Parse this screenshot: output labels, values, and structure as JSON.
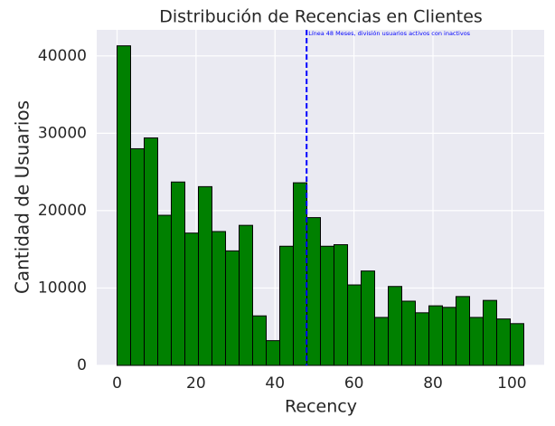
{
  "chart_data": {
    "type": "histogram",
    "title": "Distribución de Recencias en Clientes",
    "xlabel": "Recency",
    "ylabel": "Cantidad de Usuarios",
    "bins": [
      0,
      3.43,
      6.87,
      10.3,
      13.73,
      17.17,
      20.6,
      24.03,
      27.47,
      30.9,
      34.33,
      37.77,
      41.2,
      44.63,
      48.07,
      51.5,
      54.93,
      58.37,
      61.8,
      65.23,
      68.67,
      72.1,
      75.53,
      78.97,
      82.4,
      85.83,
      89.27,
      92.7,
      96.13,
      99.57,
      103
    ],
    "values": [
      41300,
      28000,
      29400,
      19400,
      23700,
      17100,
      23100,
      17300,
      14800,
      18100,
      6400,
      3200,
      15400,
      23600,
      19100,
      15400,
      15600,
      10400,
      12200,
      6200,
      10200,
      8300,
      6800,
      7700,
      7500,
      8900,
      6200,
      8400,
      6000,
      5400
    ],
    "color": "#008000",
    "edgecolor": "#000000",
    "xlim": [
      -5.15,
      108.15
    ],
    "ylim": [
      0,
      43365
    ],
    "xticks": [
      0,
      20,
      40,
      60,
      80,
      100
    ],
    "yticks": [
      0,
      10000,
      20000,
      30000,
      40000
    ],
    "grid": true,
    "vline": {
      "x": 48,
      "color": "#0000ff",
      "annotation": "Línea 48 Meses, división usuarios activos con inactivos"
    }
  }
}
